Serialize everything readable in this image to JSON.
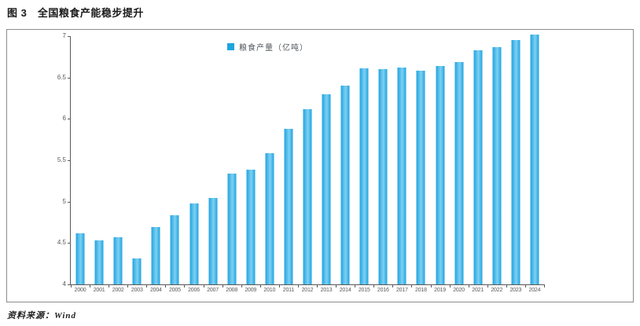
{
  "page": {
    "title": "图 3　全国粮食产能稳步提升",
    "source_note": "资料来源：Wind"
  },
  "chart_data": {
    "type": "bar",
    "title": "图 3　全国粮食产能稳步提升",
    "legend": [
      "粮食产量（亿吨）"
    ],
    "legend_position": "top-center",
    "categories": [
      "2000",
      "2001",
      "2002",
      "2003",
      "2004",
      "2005",
      "2006",
      "2007",
      "2008",
      "2009",
      "2010",
      "2011",
      "2012",
      "2013",
      "2014",
      "2015",
      "2016",
      "2017",
      "2018",
      "2019",
      "2020",
      "2021",
      "2022",
      "2023",
      "2024"
    ],
    "values": [
      4.62,
      4.53,
      4.57,
      4.31,
      4.69,
      4.84,
      4.98,
      5.04,
      5.34,
      5.39,
      5.59,
      5.88,
      6.12,
      6.3,
      6.4,
      6.61,
      6.6,
      6.62,
      6.58,
      6.64,
      6.69,
      6.83,
      6.87,
      6.95,
      7.07
    ],
    "xlabel": "",
    "ylabel": "",
    "ylim": [
      4,
      7
    ],
    "ytick_labels": [
      "4",
      "4.5",
      "5",
      "5.5",
      "6",
      "6.5",
      "7"
    ],
    "grid": false,
    "bar_color": "#1fa4e0",
    "bar_color_light": "#7fd0f2",
    "axis_color": "#595959",
    "label_color": "#595959",
    "frame_border_color": "#8c8c8c"
  }
}
